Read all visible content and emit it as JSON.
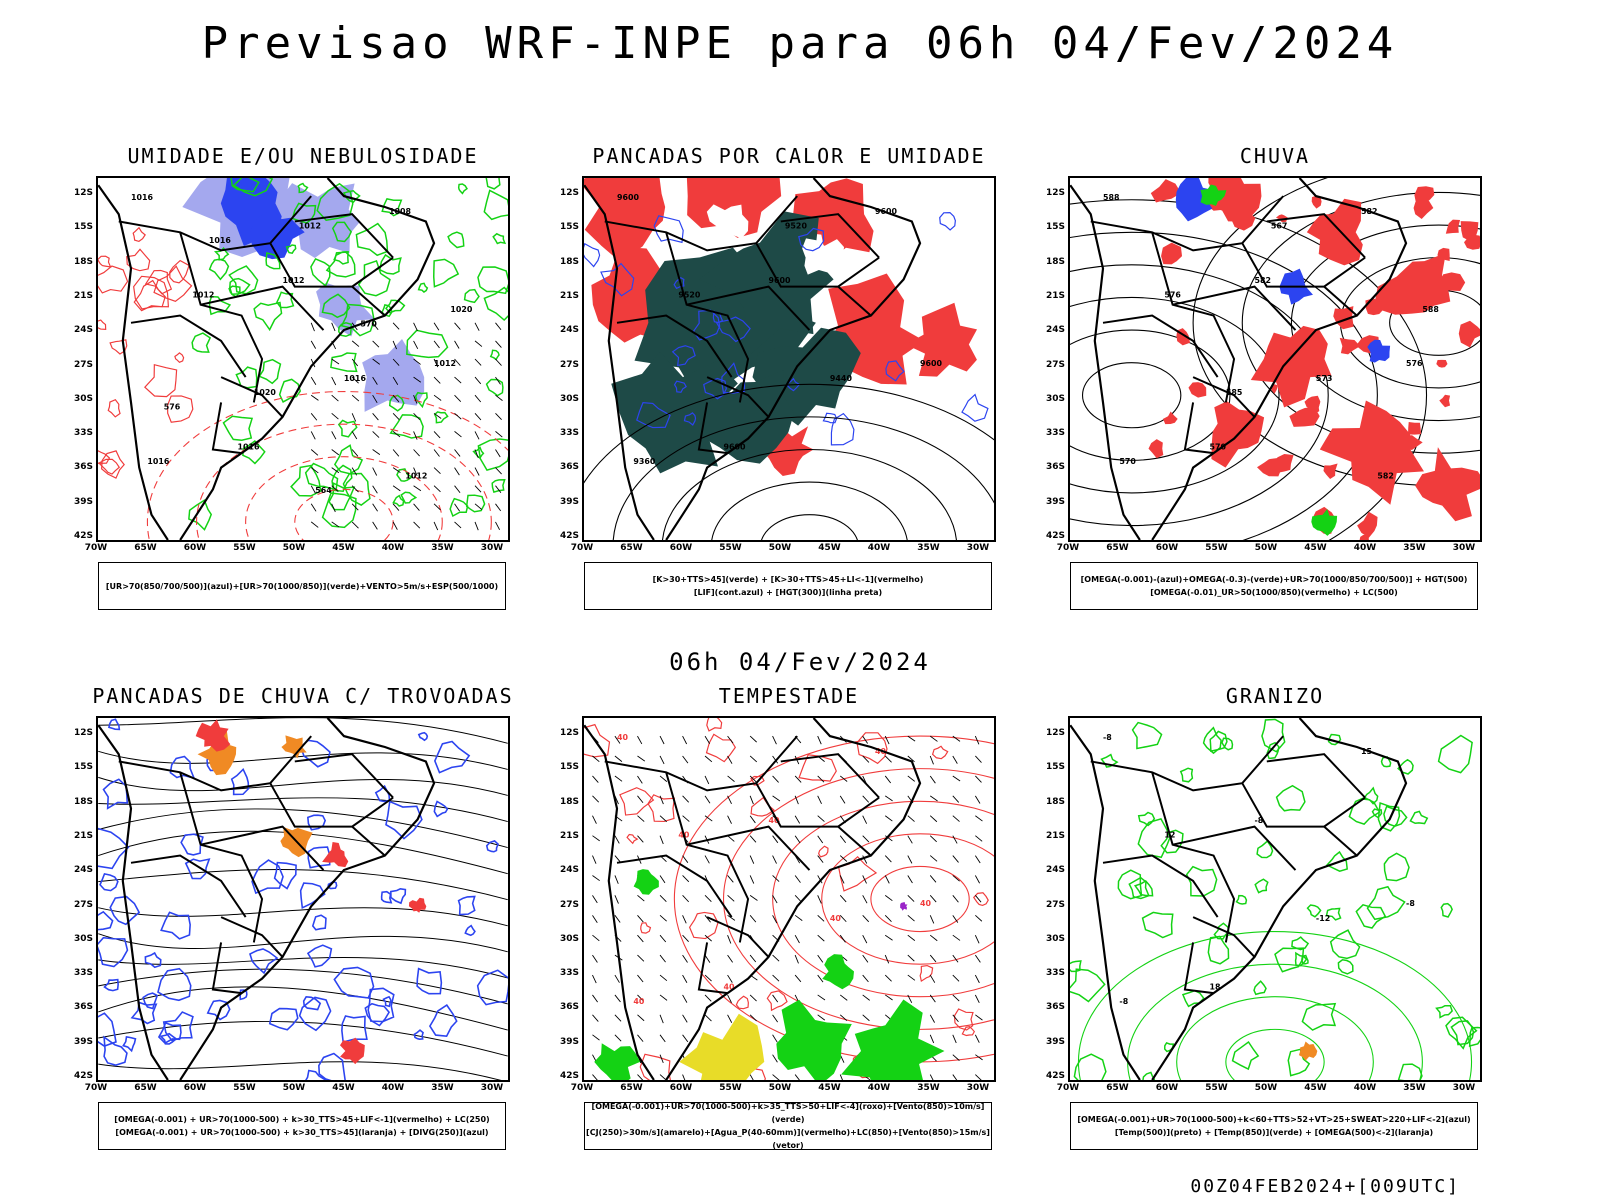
{
  "header": {
    "title": "Previsao WRF-INPE  para 06h 04/Fev/2024",
    "mid_title": "06h 04/Fev/2024",
    "footer": "00Z04FEB2024+[009UTC]"
  },
  "axes": {
    "lat_labels": [
      "12S",
      "15S",
      "18S",
      "21S",
      "24S",
      "27S",
      "30S",
      "33S",
      "36S",
      "39S",
      "42S"
    ],
    "lon_labels": [
      "70W",
      "65W",
      "60W",
      "55W",
      "50W",
      "45W",
      "40W",
      "35W",
      "30W"
    ]
  },
  "colors": {
    "blue": "#2c44f0",
    "lightblue": "#a4a8ee",
    "green": "#14d214",
    "red": "#f03c3c",
    "darkteal": "#1e4a47",
    "orange": "#f08a24",
    "yellow": "#e8dc28",
    "purple": "#9a24c8"
  },
  "panels": [
    {
      "id": "umidade",
      "title": "UMIDADE E/OU NEBULOSIDADE",
      "legend": [
        "[UR>70(850/700/500)](azul)+[UR>70(1000/850)](verde)+VENTO>5m/s+ESP(500/1000)"
      ],
      "contour_labels": [
        "1016",
        "1012",
        "1012",
        "1016",
        "1008",
        "1012",
        "1016",
        "1016",
        "1012",
        "1020",
        "1020",
        "1012",
        "1016",
        "570",
        "576",
        "564"
      ]
    },
    {
      "id": "pancadas-calor",
      "title": "PANCADAS POR CALOR E UMIDADE",
      "legend": [
        "[K>30+TTS>45](verde) + [K>30+TTS>45+LI<-1](vermelho)",
        "[LIF](cont.azul) + [HGT(300)](linha preta)"
      ],
      "contour_labels": [
        "9600",
        "9600",
        "9600",
        "9600",
        "9600",
        "9520",
        "9440",
        "9360",
        "9520"
      ]
    },
    {
      "id": "chuva",
      "title": "CHUVA",
      "legend": [
        "[OMEGA(-0.001)-(azul)+OMEGA(-0.3)-(verde)+UR>70(1000/850/700/500)] + HGT(500)",
        "[OMEGA(-0.01)_UR>50(1000/850)(vermelho) + LC(500)"
      ],
      "contour_labels": [
        "588",
        "582",
        "576",
        "570",
        "582",
        "576",
        "573",
        "570",
        "567",
        "588",
        "585",
        "582"
      ]
    },
    {
      "id": "pancadas-trovoadas",
      "title": "PANCADAS DE CHUVA C/ TROVOADAS",
      "legend": [
        "[OMEGA(-0.001) + UR>70(1000-500) + k>30_TTS>45+LIF<-1](vermelho) + LC(250)",
        "[OMEGA(-0.001) + UR>70(1000-500) + k>30_TTS>45](laranja) + [DIVG(250)](azul)"
      ],
      "contour_labels": []
    },
    {
      "id": "tempestade",
      "title": "TEMPESTADE",
      "legend": [
        "[OMEGA(-0.001)+UR>70(1000-500)+k>35_TTS>50+LIF<-4](roxo)+[Vento(850)>10m/s](verde)",
        "[CJ(250)>30m/s](amarelo)+[Agua_P(40-60mm)](vermelho)+LC(850)+[Vento(850)>15m/s](vetor)"
      ],
      "contour_labels": [
        "40",
        "40",
        "40",
        "40",
        "40",
        "40",
        "40",
        "40"
      ]
    },
    {
      "id": "granizo",
      "title": "GRANIZO",
      "legend": [
        "[OMEGA(-0.001)+UR>70(1000-500)+k<60+TTS>52+VT>25+SWEAT>220+LIF<-2](azul)",
        "[Temp(500)](preto) + [Temp(850)](verde) + [OMEGA(500)<-2](laranja)"
      ],
      "contour_labels": [
        "-8",
        "-8",
        "-8",
        "18",
        "15",
        "12",
        "-12",
        "-8"
      ]
    }
  ]
}
